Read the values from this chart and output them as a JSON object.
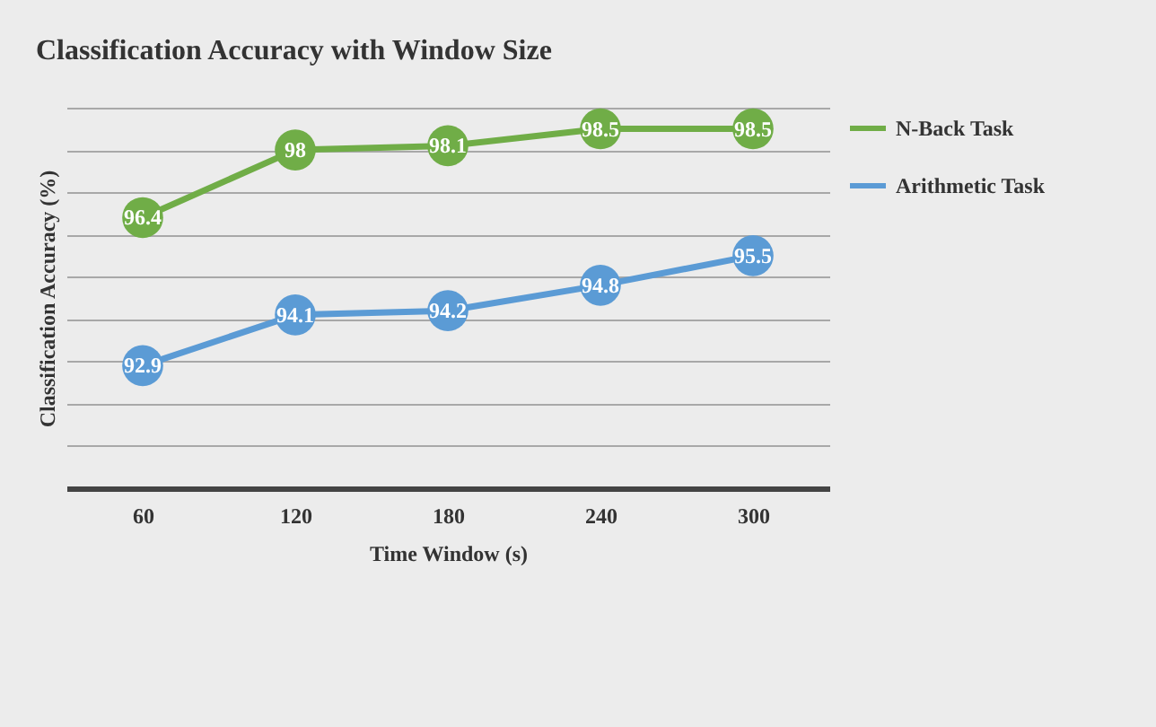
{
  "chart_data": {
    "type": "line",
    "title": "Classification Accuracy with Window Size",
    "xlabel": "Time Window (s)",
    "ylabel": "Classification Accuracy (%)",
    "categories": [
      "60",
      "120",
      "180",
      "240",
      "300"
    ],
    "series": [
      {
        "name": "N-Back Task",
        "color": "#70ad47",
        "values": [
          96.4,
          98,
          98.1,
          98.5,
          98.5
        ]
      },
      {
        "name": "Arithmetic Task",
        "color": "#5b9bd5",
        "values": [
          92.9,
          94.1,
          94.2,
          94.8,
          95.5
        ]
      }
    ],
    "ylim": [
      90,
      99
    ],
    "yticks": [
      {
        "value": 90,
        "label": null
      },
      {
        "value": 91,
        "label": null
      },
      {
        "value": 92,
        "label": null
      },
      {
        "value": 93,
        "label": null
      },
      {
        "value": 94,
        "label": null
      },
      {
        "value": 95,
        "label": null
      },
      {
        "value": 96,
        "label": null
      },
      {
        "value": 97,
        "label": null
      },
      {
        "value": 98,
        "label": null
      },
      {
        "value": 99,
        "label": null
      }
    ],
    "grid": "y",
    "legend": "top right",
    "marker": "circle",
    "line_style": "solid",
    "data_labels": true,
    "tick_labels": "x"
  }
}
